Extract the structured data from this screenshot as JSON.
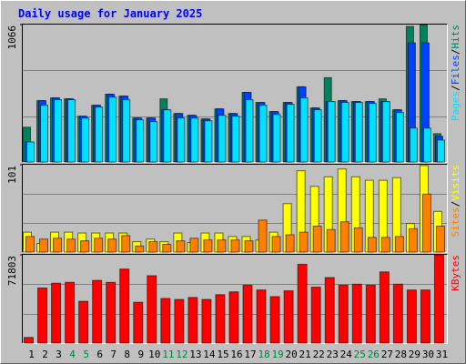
{
  "chart_data": {
    "type": "bar",
    "title": "Daily usage for January 2025",
    "categories": [
      "1",
      "2",
      "3",
      "4",
      "5",
      "6",
      "7",
      "8",
      "9",
      "10",
      "11",
      "12",
      "13",
      "14",
      "15",
      "16",
      "17",
      "18",
      "19",
      "20",
      "21",
      "22",
      "23",
      "24",
      "25",
      "26",
      "27",
      "28",
      "29",
      "30",
      "31"
    ],
    "category_colors": [
      "#000000",
      "#000000",
      "#000000",
      "#008040",
      "#008040",
      "#000000",
      "#000000",
      "#000000",
      "#000000",
      "#000000",
      "#008040",
      "#008040",
      "#000000",
      "#000000",
      "#000000",
      "#000000",
      "#000000",
      "#008040",
      "#008040",
      "#000000",
      "#000000",
      "#000000",
      "#000000",
      "#000000",
      "#008040",
      "#008040",
      "#000000",
      "#000000",
      "#000000",
      "#000000",
      "#000000"
    ],
    "grid": true,
    "legend_separator": "/",
    "panels": [
      {
        "ylim": [
          0,
          1066
        ],
        "yticks": [
          1066
        ],
        "series": [
          {
            "name": "Hits",
            "color": "#00805c",
            "values": [
              270,
              476,
              497,
              490,
              355,
              440,
              526,
              511,
              341,
              341,
              490,
              376,
              362,
              334,
              412,
              376,
              540,
              462,
              391,
              462,
              583,
              419,
              654,
              476,
              469,
              469,
              490,
              405,
              1052,
              1066,
              220
            ]
          },
          {
            "name": "Files",
            "color": "#0040ff",
            "values": [
              155,
              476,
              497,
              490,
              355,
              440,
              526,
              511,
              341,
              341,
              405,
              376,
              362,
              334,
              412,
              376,
              540,
              462,
              391,
              462,
              583,
              419,
              469,
              476,
              469,
              469,
              469,
              405,
              924,
              924,
              199
            ]
          },
          {
            "name": "Pages",
            "color": "#00e0ff",
            "values": [
              155,
              440,
              483,
              483,
              341,
              426,
              504,
              483,
              327,
              313,
              405,
              341,
              341,
              320,
              362,
              355,
              483,
              440,
              369,
              448,
              497,
              405,
              469,
              462,
              462,
              455,
              469,
              384,
              263,
              263,
              170
            ]
          }
        ]
      },
      {
        "ylim": [
          0,
          101
        ],
        "yticks": [
          101
        ],
        "series": [
          {
            "name": "Visits",
            "color": "#ffff00",
            "values": [
              23,
              10,
              23,
              23,
              22,
              22,
              22,
              22,
              12,
              15,
              12,
              22,
              11,
              22,
              22,
              18,
              18,
              14,
              23,
              56,
              94,
              76,
              87,
              96,
              87,
              83,
              83,
              86,
              33,
              100,
              47
            ]
          },
          {
            "name": "Sites",
            "color": "#ff8000",
            "values": [
              18,
              15,
              16,
              15,
              13,
              16,
              15,
              19,
              7,
              12,
              9,
              13,
              16,
              14,
              14,
              14,
              13,
              37,
              18,
              20,
              23,
              30,
              26,
              35,
              28,
              17,
              17,
              18,
              27,
              67,
              30
            ]
          }
        ]
      },
      {
        "ylim": [
          0,
          71803
        ],
        "yticks": [
          71803
        ],
        "series": [
          {
            "name": "KBytes",
            "color": "#ff0000",
            "values": [
              4600,
              44800,
              48700,
              49400,
              34000,
              51000,
              49400,
              60200,
              33200,
              54800,
              36300,
              35500,
              37100,
              35500,
              39400,
              41700,
              47100,
              43200,
              37800,
              42500,
              64100,
              45500,
              53300,
              47100,
              47900,
              47100,
              57900,
              47900,
              43200,
              43200,
              71803
            ]
          }
        ]
      }
    ]
  }
}
